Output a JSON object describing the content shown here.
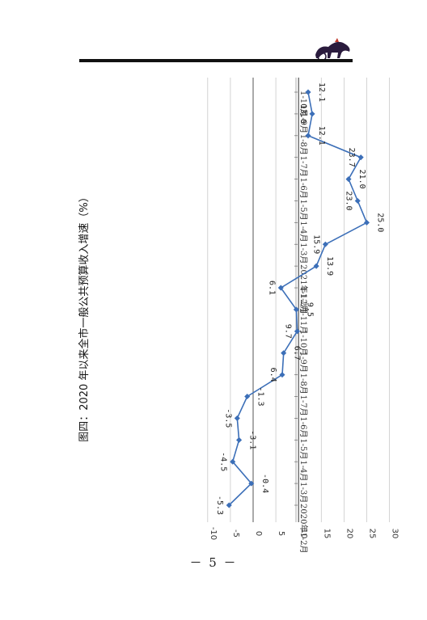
{
  "page": {
    "number": "－ 5 －"
  },
  "colors": {
    "series": "#3c6fb8",
    "grid": "#c9c9c9",
    "axis": "#555555",
    "rule": "#111111"
  },
  "logo": {
    "icon": "horse-cart-logo"
  },
  "chart_data": {
    "type": "line",
    "title": "图四：2020 年以来全市一般公共预算收入增速（%）",
    "xlabel": "",
    "ylabel": "",
    "ylim": [
      -10,
      30
    ],
    "yticks": [
      -10,
      -5,
      0,
      5,
      10,
      15,
      20,
      25,
      30
    ],
    "ytick_labels": [
      "-10",
      "-5",
      "0",
      "5",
      "10",
      "15",
      "20",
      "25",
      "30"
    ],
    "grid": true,
    "categories": [
      "2020年1-2月",
      "1-3月",
      "1-4月",
      "1-5月",
      "1-6月",
      "1-7月",
      "1-8月",
      "1-9月",
      "1-10月",
      "1-11月",
      "1-12月",
      "2021年1-2月",
      "1-3月",
      "1-4月",
      "1-5月",
      "1-6月",
      "1-7月",
      "1-8月",
      "1-9月",
      "1-10月"
    ],
    "values": [
      -5.3,
      -0.4,
      -4.5,
      -3.1,
      -3.5,
      -1.3,
      6.4,
      6.7,
      9.7,
      9.5,
      6.1,
      13.9,
      15.9,
      25.0,
      23.0,
      21.0,
      23.7,
      12.1,
      13.0,
      12.1
    ],
    "data_labels": [
      "-5.3",
      "-0.4",
      "-4.5",
      "-3.1",
      "-3.5",
      "-1.3",
      "6.4",
      "6.7",
      "9.7",
      "9.5",
      "6.1",
      "13.9",
      "15.9",
      "25.0",
      "23.0",
      "21.0",
      "23.7",
      "12.1",
      "13.0",
      "12.1"
    ]
  }
}
